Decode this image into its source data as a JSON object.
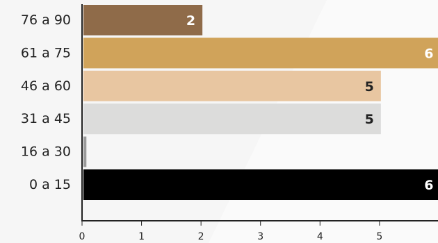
{
  "chart_data": {
    "type": "bar",
    "orientation": "horizontal",
    "categories": [
      "76 a 90",
      "61 a 75",
      "46 a 60",
      "31 a 45",
      "16 a 30",
      "0 a 15"
    ],
    "values": [
      2,
      6,
      5,
      5,
      0.05,
      6
    ],
    "data_labels": [
      "2",
      "6",
      "5",
      "5",
      "",
      "6"
    ],
    "colors": [
      "#8f6b49",
      "#d0a35a",
      "#e8c6a1",
      "#dcdcdb",
      "#9a9a9a",
      "#000000"
    ],
    "label_colors": [
      "#ffffff",
      "#ffffff",
      "#222222",
      "#222222",
      "#222222",
      "#ffffff"
    ],
    "x_ticks": [
      "0",
      "1",
      "2",
      "3",
      "4",
      "5"
    ],
    "xlim": [
      0,
      5.96
    ],
    "grid": false,
    "legend": "none",
    "title": "",
    "xlabel": "",
    "ylabel": ""
  }
}
